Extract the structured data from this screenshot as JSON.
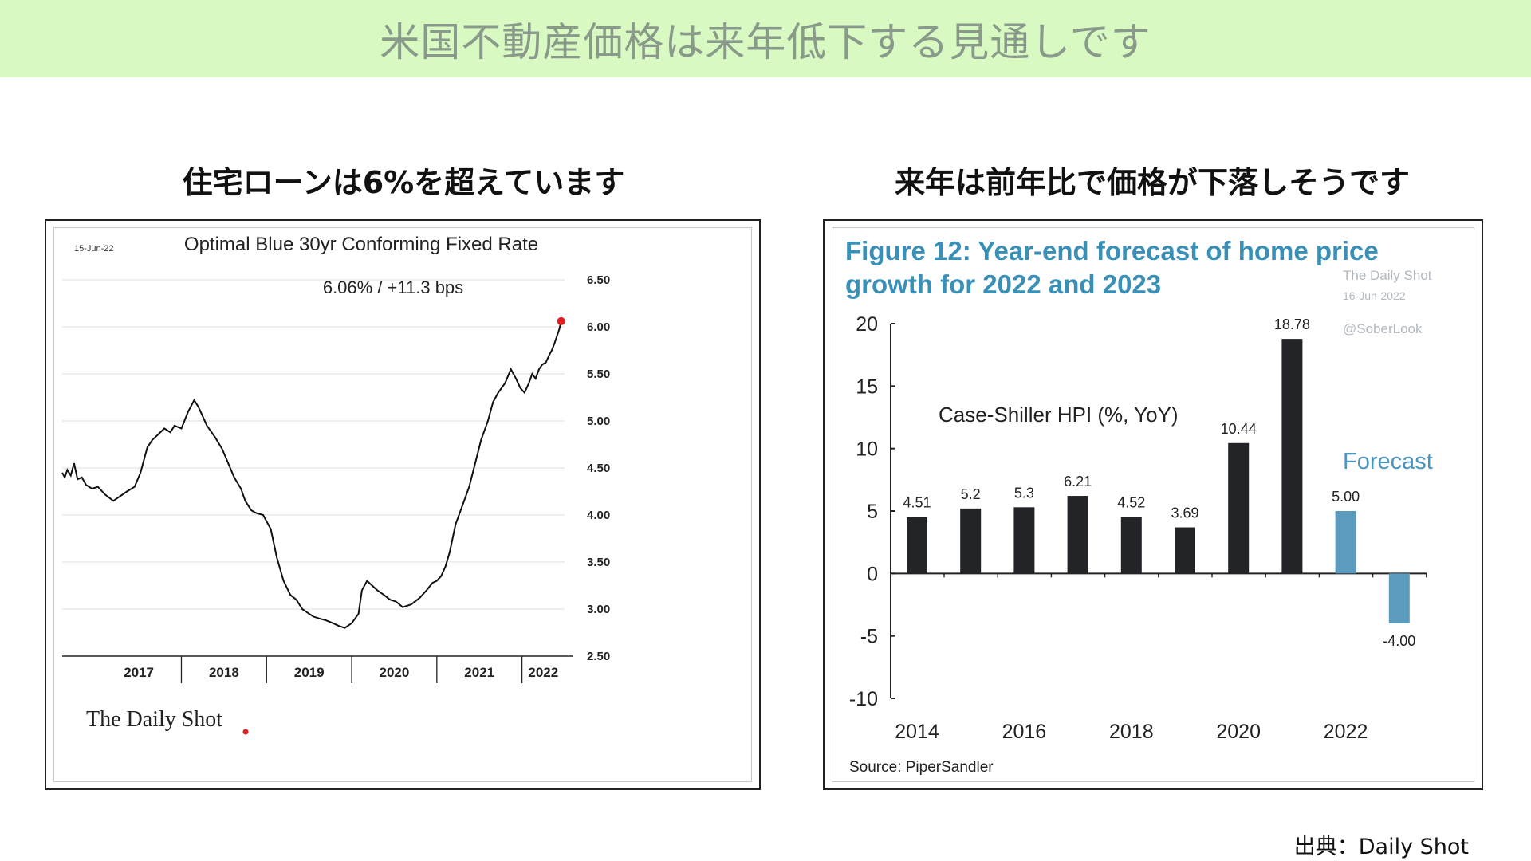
{
  "page": {
    "title": "米国不動産価格は来年低下する見通しです",
    "left_heading": "住宅ローンは6%を超えています",
    "right_heading": "来年は前年比で価格が下落しそうです",
    "source": "出典：Daily Shot"
  },
  "chart_data": [
    {
      "type": "line",
      "date_label": "15-Jun-22",
      "title": "Optimal Blue 30yr Conforming Fixed Rate",
      "subtitle": "6.06%  /  +11.3 bps",
      "brand": "The Daily Shot",
      "x_categories": [
        "2017",
        "2018",
        "2019",
        "2020",
        "2021",
        "2022"
      ],
      "y_ticks": [
        "6.50",
        "6.00",
        "5.50",
        "5.00",
        "4.50",
        "4.00",
        "3.50",
        "3.00",
        "2.50"
      ],
      "ylim": [
        2.5,
        6.5
      ],
      "xlim": [
        2016.6,
        2022.5
      ],
      "grid": true,
      "series": [
        {
          "x": [
            2016.6,
            2016.63,
            2016.66,
            2016.7,
            2016.74,
            2016.78,
            2016.83,
            2016.88,
            2016.95,
            2017.02,
            2017.1,
            2017.2,
            2017.28,
            2017.36,
            2017.45,
            2017.52,
            2017.6,
            2017.66,
            2017.72,
            2017.8,
            2017.87,
            2017.92,
            2018.0,
            2018.08,
            2018.15,
            2018.2,
            2018.3,
            2018.4,
            2018.48,
            2018.55,
            2018.62,
            2018.7,
            2018.75,
            2018.82,
            2018.88,
            2018.96,
            2019.05,
            2019.12,
            2019.2,
            2019.28,
            2019.35,
            2019.42,
            2019.5,
            2019.55,
            2019.62,
            2019.7,
            2019.78,
            2019.85,
            2019.92,
            2020.0,
            2020.08,
            2020.12,
            2020.18,
            2020.24,
            2020.3,
            2020.38,
            2020.45,
            2020.52,
            2020.6,
            2020.7,
            2020.8,
            2020.88,
            2020.95,
            2021.0,
            2021.05,
            2021.1,
            2021.15,
            2021.22,
            2021.3,
            2021.38,
            2021.45,
            2021.52,
            2021.6,
            2021.66,
            2021.72,
            2021.8,
            2021.87,
            2021.93,
            2021.98,
            2022.03,
            2022.08,
            2022.12,
            2022.16,
            2022.2,
            2022.24,
            2022.28,
            2022.32,
            2022.35,
            2022.38,
            2022.41,
            2022.44,
            2022.46
          ],
          "y": [
            4.45,
            4.4,
            4.48,
            4.42,
            4.55,
            4.38,
            4.4,
            4.32,
            4.28,
            4.3,
            4.22,
            4.15,
            4.2,
            4.25,
            4.3,
            4.45,
            4.72,
            4.8,
            4.85,
            4.92,
            4.88,
            4.95,
            4.92,
            5.1,
            5.22,
            5.15,
            4.95,
            4.82,
            4.7,
            4.55,
            4.4,
            4.28,
            4.15,
            4.05,
            4.02,
            4.0,
            3.85,
            3.55,
            3.3,
            3.15,
            3.1,
            3.0,
            2.95,
            2.92,
            2.9,
            2.88,
            2.85,
            2.82,
            2.8,
            2.85,
            2.95,
            3.2,
            3.3,
            3.25,
            3.2,
            3.15,
            3.1,
            3.08,
            3.02,
            3.05,
            3.12,
            3.2,
            3.28,
            3.3,
            3.35,
            3.45,
            3.6,
            3.9,
            4.1,
            4.3,
            4.55,
            4.8,
            5.0,
            5.2,
            5.3,
            5.4,
            5.55,
            5.45,
            5.35,
            5.3,
            5.4,
            5.5,
            5.45,
            5.55,
            5.6,
            5.62,
            5.7,
            5.75,
            5.82,
            5.9,
            5.98,
            6.06
          ]
        }
      ],
      "last_point": {
        "x": 2022.46,
        "y": 6.06
      }
    },
    {
      "type": "bar",
      "title": "Figure 12: Year-end forecast of home price growth for 2022 and 2023",
      "watermark": [
        "The Daily Shot",
        "16-Jun-2022",
        "@SoberLook"
      ],
      "inner_label": "Case-Shiller HPI (%, YoY)",
      "annotation": "Forecast",
      "source": "Source: PiperSandler",
      "categories": [
        "2014",
        "2015",
        "2016",
        "2017",
        "2018",
        "2019",
        "2020",
        "2021",
        "2022",
        "2023"
      ],
      "x_tick_labels": [
        "2014",
        "2016",
        "2018",
        "2020",
        "2022"
      ],
      "values": [
        4.51,
        5.2,
        5.3,
        6.21,
        4.52,
        3.69,
        10.44,
        18.78,
        5.0,
        -4.0
      ],
      "value_labels": [
        "4.51",
        "5.2",
        "5.3",
        "6.21",
        "4.52",
        "3.69",
        "10.44",
        "18.78",
        "5.00",
        "-4.00"
      ],
      "forecast": [
        false,
        false,
        false,
        false,
        false,
        false,
        false,
        false,
        true,
        true
      ],
      "y_ticks": [
        "20",
        "15",
        "10",
        "5",
        "0",
        "-5",
        "-10"
      ],
      "ylim": [
        -10,
        20
      ],
      "colors": {
        "actual": "#222428",
        "forecast": "#5b9bbd",
        "title": "#3a8fb7",
        "annotation": "#4a95c0"
      }
    }
  ]
}
